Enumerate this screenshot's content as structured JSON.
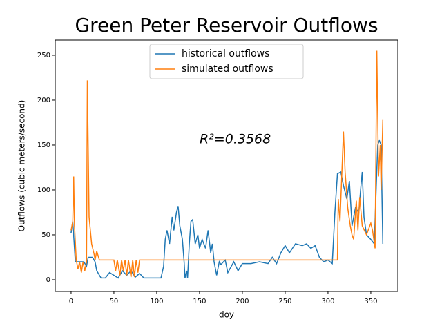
{
  "chart_data": {
    "type": "line",
    "title": "Green Peter Reservoir Outflows",
    "x_label": "doy",
    "y_label": "Outflows (cubic meters/second)",
    "annotation": "R²=0.3568",
    "legend": "upper center",
    "xlim": [
      -18.5,
      381.5
    ],
    "ylim": [
      -13.1,
      266.9
    ],
    "xticks": [
      0,
      50,
      100,
      150,
      200,
      250,
      300,
      350
    ],
    "yticks": [
      0,
      50,
      100,
      150,
      200,
      250
    ],
    "series": [
      {
        "name": "historical outflows",
        "color": "#1f77b4",
        "x": [
          0,
          2,
          5,
          10,
          15,
          18,
          20,
          25,
          28,
          30,
          35,
          40,
          45,
          50,
          55,
          60,
          65,
          70,
          75,
          80,
          85,
          100,
          105,
          108,
          110,
          112,
          115,
          118,
          120,
          123,
          125,
          127,
          130,
          132,
          133,
          135,
          136,
          138,
          140,
          142,
          145,
          148,
          150,
          153,
          157,
          160,
          163,
          165,
          167,
          170,
          173,
          175,
          180,
          183,
          190,
          195,
          200,
          210,
          220,
          230,
          235,
          240,
          245,
          250,
          255,
          262,
          270,
          275,
          280,
          285,
          290,
          295,
          300,
          305,
          308,
          311,
          315,
          318,
          322,
          325,
          328,
          332,
          336,
          338,
          340,
          342,
          345,
          350,
          354,
          358,
          360,
          362,
          364
        ],
        "values": [
          52,
          65,
          20,
          20,
          20,
          15,
          25,
          25,
          20,
          10,
          2,
          2,
          8,
          5,
          2,
          10,
          5,
          10,
          3,
          7,
          2,
          2,
          2,
          15,
          45,
          55,
          40,
          70,
          55,
          75,
          82,
          60,
          45,
          20,
          2,
          10,
          2,
          40,
          65,
          67,
          40,
          50,
          35,
          45,
          35,
          55,
          30,
          40,
          20,
          5,
          20,
          17,
          22,
          8,
          20,
          10,
          18,
          18,
          20,
          18,
          25,
          18,
          30,
          38,
          30,
          40,
          38,
          40,
          35,
          38,
          25,
          20,
          22,
          18,
          75,
          118,
          120,
          105,
          90,
          110,
          60,
          80,
          75,
          100,
          120,
          70,
          50,
          45,
          40,
          150,
          155,
          150,
          40
        ]
      },
      {
        "name": "simulated outflows",
        "color": "#ff7f0e",
        "x": [
          0,
          2,
          3,
          4,
          6,
          8,
          10,
          12,
          14,
          16,
          18,
          19,
          21,
          24,
          27,
          28,
          30,
          33,
          50,
          52,
          54,
          57,
          59,
          61,
          63,
          65,
          67,
          70,
          72,
          74,
          76,
          78,
          80,
          310,
          311,
          312,
          314,
          318,
          320,
          323,
          326,
          328,
          330,
          333,
          335,
          337,
          340,
          345,
          350,
          352,
          355,
          357,
          359,
          361,
          362,
          364
        ],
        "values": [
          55,
          65,
          115,
          60,
          22,
          12,
          20,
          8,
          20,
          10,
          20,
          222,
          70,
          40,
          28,
          22,
          32,
          22,
          22,
          10,
          22,
          5,
          22,
          10,
          22,
          5,
          22,
          3,
          22,
          3,
          22,
          8,
          22,
          22,
          22,
          90,
          65,
          165,
          120,
          80,
          60,
          50,
          45,
          88,
          55,
          92,
          60,
          50,
          63,
          55,
          35,
          255,
          115,
          150,
          100,
          178
        ]
      }
    ]
  }
}
